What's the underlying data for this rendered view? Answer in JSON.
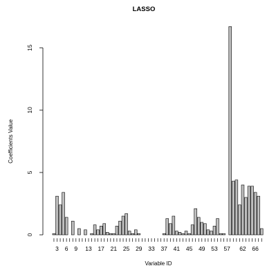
{
  "chart_data": {
    "type": "bar",
    "title": "LASSO",
    "xlabel": "Variable ID",
    "ylabel": "Coefficients Value",
    "ylim": [
      0,
      17
    ],
    "grid": false,
    "legend": "none",
    "colors": {
      "bar_fill": "#bebebe",
      "bar_stroke": "#000000",
      "axis": "#000000",
      "text": "#000000"
    },
    "yticks": [
      0,
      5,
      10,
      15
    ],
    "xticks": [
      {
        "at": 3,
        "label": "3"
      },
      {
        "at": 6,
        "label": "6"
      },
      {
        "at": 9,
        "label": "9"
      },
      {
        "at": 13,
        "label": "13"
      },
      {
        "at": 17,
        "label": "17"
      },
      {
        "at": 21,
        "label": "21"
      },
      {
        "at": 25,
        "label": "25"
      },
      {
        "at": 29,
        "label": "29"
      },
      {
        "at": 33,
        "label": "33"
      },
      {
        "at": 37,
        "label": "37"
      },
      {
        "at": 41,
        "label": "41"
      },
      {
        "at": 45,
        "label": "45"
      },
      {
        "at": 49,
        "label": "49"
      },
      {
        "at": 53,
        "label": "53"
      },
      {
        "at": 57,
        "label": "57"
      },
      {
        "at": 62,
        "label": "62"
      },
      {
        "at": 66,
        "label": "66"
      }
    ],
    "variable_ids": [
      2,
      3,
      4,
      5,
      6,
      7,
      8,
      9,
      10,
      11,
      12,
      13,
      14,
      15,
      16,
      17,
      18,
      19,
      20,
      21,
      22,
      23,
      24,
      25,
      26,
      27,
      28,
      29,
      30,
      31,
      32,
      33,
      34,
      35,
      36,
      37,
      38,
      39,
      40,
      41,
      42,
      43,
      44,
      45,
      46,
      47,
      48,
      49,
      50,
      51,
      52,
      53,
      54,
      55,
      56,
      57,
      58,
      59,
      60,
      61,
      62,
      63,
      64,
      65,
      66,
      67,
      68
    ],
    "values": [
      0.1,
      3.1,
      2.4,
      3.4,
      1.4,
      0.0,
      1.1,
      0.0,
      0.5,
      0.0,
      0.4,
      0.0,
      0.1,
      0.8,
      0.4,
      0.7,
      0.9,
      0.2,
      0.1,
      0.1,
      0.7,
      1.1,
      1.5,
      1.7,
      0.3,
      0.1,
      0.4,
      0.1,
      0.0,
      0.0,
      0.0,
      0.0,
      0.0,
      0.0,
      0.0,
      0.1,
      1.3,
      0.9,
      1.5,
      0.3,
      0.2,
      0.1,
      0.3,
      0.1,
      0.8,
      2.1,
      1.4,
      1.0,
      0.9,
      0.4,
      0.3,
      0.7,
      1.3,
      0.1,
      0.1,
      0.0,
      16.7,
      4.3,
      4.4,
      2.4,
      4.0,
      3.0,
      3.9,
      3.9,
      3.4,
      3.1,
      0.5
    ]
  }
}
